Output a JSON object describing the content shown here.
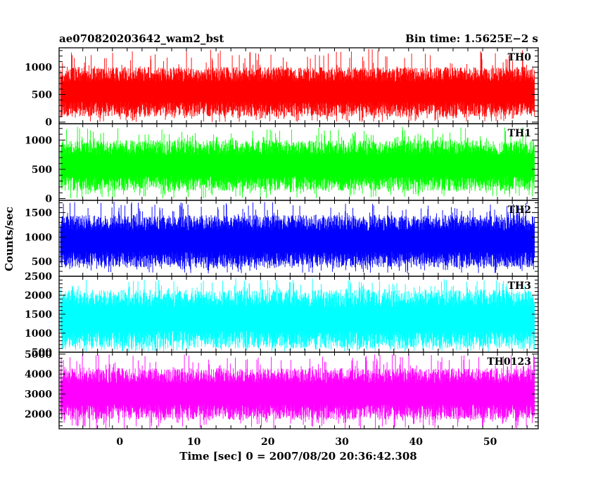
{
  "header": {
    "title": "ae070820203642_wam2_bst",
    "bin_time": "Bin time: 1.5625E−2 s"
  },
  "xlabel": "Time [sec] 0 = 2007/08/20 20:36:42.308",
  "ylabel": "Counts/sec",
  "chart_data": {
    "type": "line",
    "title": "ae070820203642_wam2_bst",
    "subtitle": "Bin time: 1.5625E−2 s",
    "xlabel": "Time [sec] 0 = 2007/08/20 20:36:42.308",
    "ylabel": "Counts/sec",
    "xlim": [
      -8.2,
      56.5
    ],
    "data_x_range": [
      -8,
      56
    ],
    "xticks": [
      0,
      10,
      20,
      30,
      40,
      50
    ],
    "grid": false,
    "legend": "none",
    "series": [
      {
        "name": "TH0",
        "color": "#ff0000",
        "ylim": [
          -30,
          1350
        ],
        "yticks": [
          0,
          500,
          1000
        ],
        "typical_range": [
          100,
          1000
        ],
        "spike_range": [
          0,
          1330
        ]
      },
      {
        "name": "TH1",
        "color": "#00ff00",
        "ylim": [
          -30,
          1280
        ],
        "yticks": [
          0,
          500,
          1000
        ],
        "typical_range": [
          130,
          1000
        ],
        "spike_range": [
          0,
          1230
        ]
      },
      {
        "name": "TH2",
        "color": "#0000ff",
        "ylim": [
          200,
          1750
        ],
        "yticks": [
          500,
          1000,
          1500
        ],
        "typical_range": [
          380,
          1450
        ],
        "spike_range": [
          260,
          1720
        ]
      },
      {
        "name": "TH3",
        "color": "#00ffff",
        "ylim": [
          500,
          2500
        ],
        "yticks": [
          1000,
          1500,
          2000,
          2500,
          500
        ],
        "typical_range": [
          600,
          2150
        ],
        "spike_range": [
          520,
          2450
        ]
      },
      {
        "name": "TH0123",
        "color": "#ff00ff",
        "ylim": [
          1250,
          5100
        ],
        "yticks": [
          2000,
          3000,
          4000,
          5000
        ],
        "typical_range": [
          1700,
          4300
        ],
        "spike_range": [
          1250,
          5000
        ]
      }
    ]
  }
}
